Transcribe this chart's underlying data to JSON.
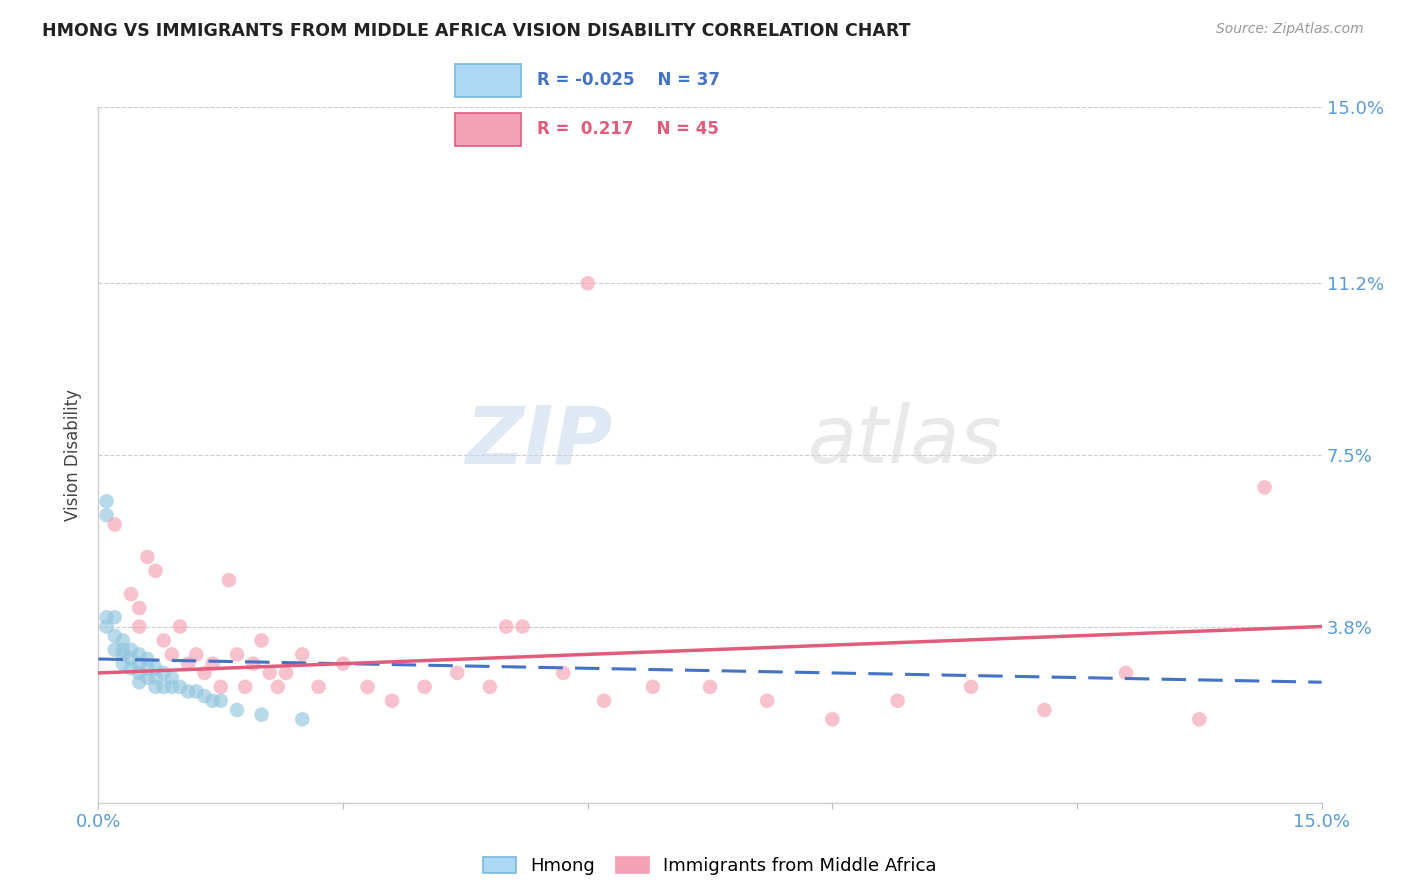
{
  "title": "HMONG VS IMMIGRANTS FROM MIDDLE AFRICA VISION DISABILITY CORRELATION CHART",
  "source": "Source: ZipAtlas.com",
  "ylabel": "Vision Disability",
  "xlim": [
    0,
    0.15
  ],
  "ylim": [
    0,
    0.15
  ],
  "ytick_values": [
    0,
    0.038,
    0.075,
    0.112,
    0.15
  ],
  "ytick_labels": [
    "",
    "3.8%",
    "7.5%",
    "11.2%",
    "15.0%"
  ],
  "xtick_values": [
    0,
    0.03,
    0.06,
    0.09,
    0.12,
    0.15
  ],
  "xtick_labels": [
    "0.0%",
    "",
    "",
    "",
    "",
    "15.0%"
  ],
  "hmong_color": "#92c5de",
  "africa_color": "#f4a0b5",
  "hmong_line_color": "#4472c4",
  "africa_line_color": "#e05c7a",
  "watermark_zip": "ZIP",
  "watermark_atlas": "atlas",
  "hmong_x": [
    0.001,
    0.001,
    0.001,
    0.001,
    0.002,
    0.002,
    0.002,
    0.003,
    0.003,
    0.003,
    0.003,
    0.004,
    0.004,
    0.004,
    0.005,
    0.005,
    0.005,
    0.005,
    0.006,
    0.006,
    0.006,
    0.007,
    0.007,
    0.007,
    0.008,
    0.008,
    0.009,
    0.009,
    0.01,
    0.011,
    0.012,
    0.013,
    0.014,
    0.015,
    0.017,
    0.02,
    0.025
  ],
  "hmong_y": [
    0.065,
    0.062,
    0.04,
    0.038,
    0.04,
    0.036,
    0.033,
    0.035,
    0.033,
    0.032,
    0.03,
    0.033,
    0.031,
    0.029,
    0.032,
    0.03,
    0.028,
    0.026,
    0.031,
    0.029,
    0.027,
    0.029,
    0.027,
    0.025,
    0.028,
    0.025,
    0.027,
    0.025,
    0.025,
    0.024,
    0.024,
    0.023,
    0.022,
    0.022,
    0.02,
    0.019,
    0.018
  ],
  "africa_x": [
    0.002,
    0.004,
    0.005,
    0.005,
    0.006,
    0.007,
    0.008,
    0.009,
    0.01,
    0.011,
    0.012,
    0.013,
    0.014,
    0.015,
    0.016,
    0.017,
    0.018,
    0.019,
    0.02,
    0.021,
    0.022,
    0.023,
    0.025,
    0.027,
    0.03,
    0.033,
    0.036,
    0.04,
    0.044,
    0.048,
    0.052,
    0.057,
    0.062,
    0.068,
    0.075,
    0.082,
    0.09,
    0.098,
    0.107,
    0.116,
    0.126,
    0.135,
    0.143,
    0.05,
    0.06
  ],
  "africa_y": [
    0.06,
    0.045,
    0.042,
    0.038,
    0.053,
    0.05,
    0.035,
    0.032,
    0.038,
    0.03,
    0.032,
    0.028,
    0.03,
    0.025,
    0.048,
    0.032,
    0.025,
    0.03,
    0.035,
    0.028,
    0.025,
    0.028,
    0.032,
    0.025,
    0.03,
    0.025,
    0.022,
    0.025,
    0.028,
    0.025,
    0.038,
    0.028,
    0.022,
    0.025,
    0.025,
    0.022,
    0.018,
    0.022,
    0.025,
    0.02,
    0.028,
    0.018,
    0.068,
    0.038,
    0.112
  ]
}
